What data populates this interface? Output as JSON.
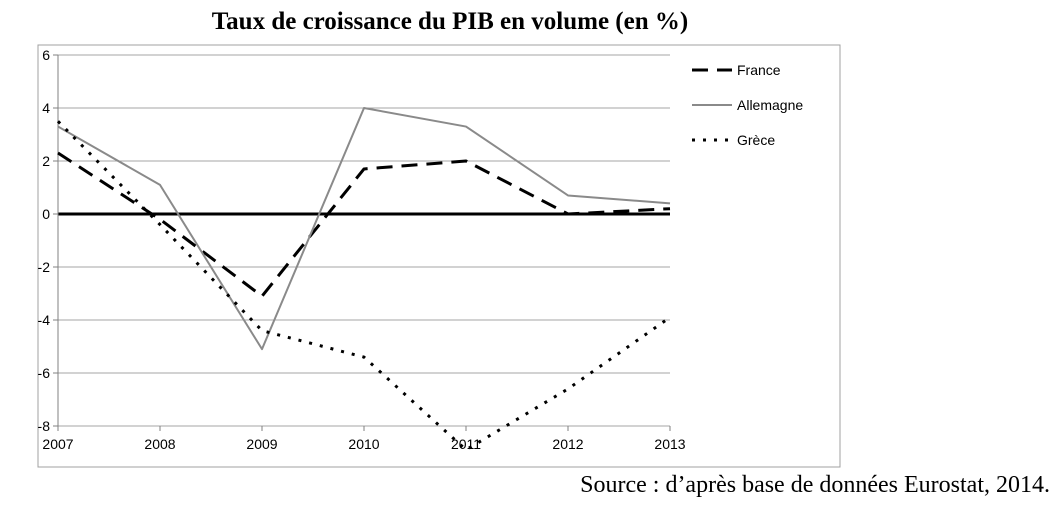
{
  "chart_data": {
    "type": "line",
    "title": "Taux de croissance du PIB en volume (en %)",
    "x": [
      2007,
      2008,
      2009,
      2010,
      2011,
      2012,
      2013
    ],
    "x_tick_labels": [
      "2007",
      "2008",
      "2009",
      "2010",
      "2011",
      "2012",
      "2013"
    ],
    "ylim": [
      -8,
      6
    ],
    "y_ticks": [
      6,
      4,
      2,
      0,
      -2,
      -4,
      -6,
      -8
    ],
    "y_tick_labels": [
      "6",
      "4",
      "2",
      "0",
      "-2",
      "-4",
      "-6",
      "-8"
    ],
    "grid": true,
    "legend_position": "right",
    "series": [
      {
        "name": "France",
        "style": "dashed",
        "color": "#000000",
        "values": [
          2.3,
          -0.2,
          -3.1,
          1.7,
          2.0,
          0.0,
          0.2
        ]
      },
      {
        "name": "Allemagne",
        "style": "solid",
        "color": "#8a8a8a",
        "values": [
          3.3,
          1.1,
          -5.1,
          4.0,
          3.3,
          0.7,
          0.4
        ]
      },
      {
        "name": "Grèce",
        "style": "dotted",
        "color": "#000000",
        "values": [
          3.5,
          -0.4,
          -4.4,
          -5.4,
          -8.9,
          -6.6,
          -3.9
        ]
      }
    ]
  },
  "source": "Source : d’après base de données Eurostat, 2014."
}
